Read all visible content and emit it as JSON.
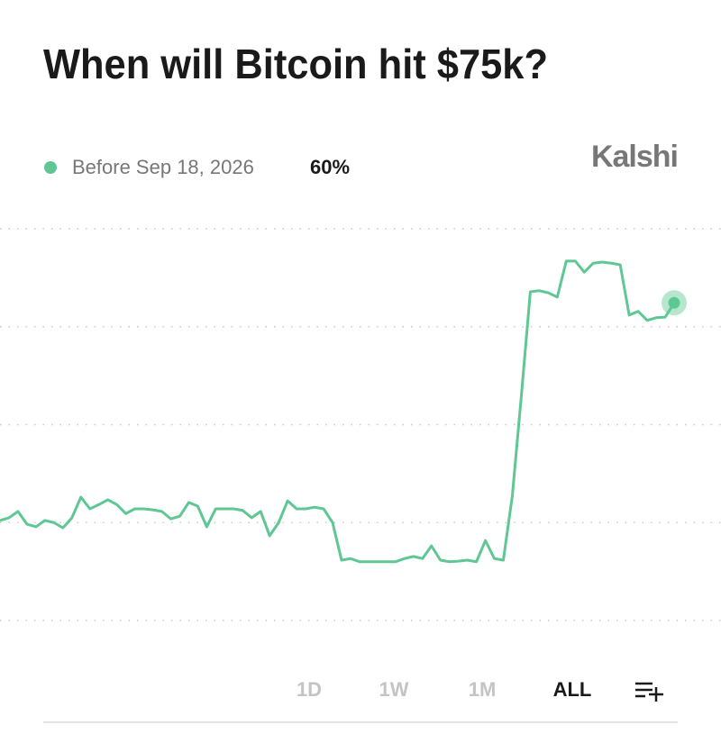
{
  "chart_data": {
    "type": "line",
    "title": "When will Bitcoin hit $75k?",
    "brand": "Kalshi",
    "series": [
      {
        "name": "Before Sep 18, 2026",
        "color": "#5fc794",
        "legend_value": "60%",
        "values": [
          18.9,
          19.4,
          20.6,
          18.2,
          17.7,
          18.9,
          18.5,
          17.5,
          19.4,
          23.3,
          21.1,
          21.9,
          22.8,
          21.9,
          20.2,
          21.1,
          21.1,
          20.9,
          20.6,
          19.2,
          19.7,
          22.3,
          21.6,
          17.7,
          21.1,
          21.1,
          21.1,
          20.8,
          19.4,
          20.6,
          16.0,
          18.5,
          22.6,
          21.1,
          21.1,
          21.4,
          21.1,
          18.5,
          11.4,
          11.7,
          11.1,
          11.1,
          11.1,
          11.1,
          11.1,
          11.7,
          12.1,
          11.7,
          14.1,
          11.4,
          11.1,
          11.2,
          11.4,
          11.1,
          15.1,
          11.7,
          11.4,
          23.6,
          42.4,
          62.1,
          62.3,
          61.9,
          61.1,
          67.9,
          67.9,
          65.8,
          67.5,
          67.7,
          67.5,
          67.2,
          57.7,
          58.4,
          56.7,
          57.2,
          57.3,
          60
        ]
      }
    ],
    "ylim": [
      0,
      74
    ],
    "grid": true,
    "ranges": [
      "1D",
      "1W",
      "1M",
      "ALL"
    ],
    "selected_range": "ALL"
  }
}
